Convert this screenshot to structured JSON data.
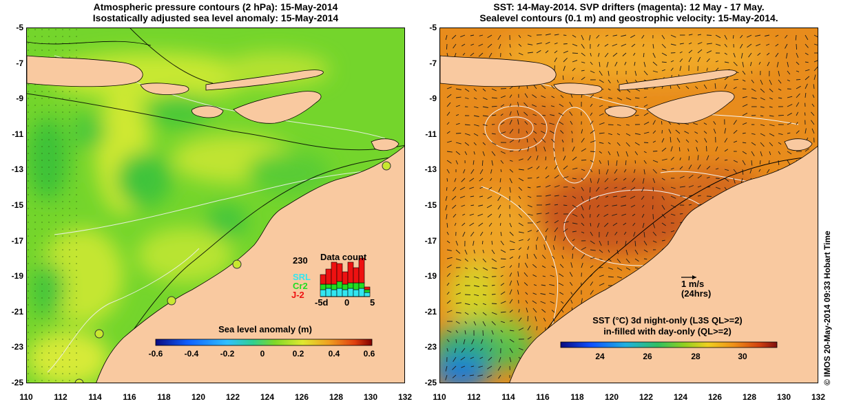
{
  "left_panel": {
    "title_line1": "Atmospheric pressure contours (2 hPa): 15-May-2014",
    "title_line2": "Isostatically adjusted sea level anomaly: 15-May-2014",
    "colorbar": {
      "title": "Sea level anomaly (m)",
      "ticks": [
        "-0.6",
        "-0.4",
        "-0.2",
        "0",
        "0.2",
        "0.4",
        "0.6"
      ]
    },
    "inset": {
      "title": "Data count",
      "max_label": "230",
      "satellites": [
        {
          "name": "SRL",
          "color": "#33e6f0"
        },
        {
          "name": "Cr2",
          "color": "#22dd22"
        },
        {
          "name": "J-2",
          "color": "#ee1111"
        }
      ],
      "x_ticks": [
        "-5d",
        "0",
        "5"
      ]
    }
  },
  "right_panel": {
    "title_line1": "SST: 14-May-2014. SVP drifters (magenta): 12 May - 17 May.",
    "title_line2": "Sealevel contours (0.1 m) and geostrophic velocity: 15-May-2014.",
    "velocity_key": {
      "speed": "1 m/s",
      "duration": "(24hrs)"
    },
    "colorbar": {
      "title_line1": "SST (°C)  3d night-only (L3S QL>=2)",
      "title_line2": "in-filled with day-only (QL>=2)",
      "ticks": [
        "24",
        "26",
        "28",
        "30"
      ]
    }
  },
  "axes": {
    "lat_ticks": [
      "-5",
      "-7",
      "-9",
      "-11",
      "-13",
      "-15",
      "-17",
      "-19",
      "-21",
      "-23",
      "-25"
    ],
    "lon_ticks": [
      "110",
      "112",
      "114",
      "116",
      "118",
      "120",
      "122",
      "124",
      "126",
      "128",
      "130",
      "132"
    ]
  },
  "footer": "© IMOS 20-May-2014 09:33 Hobart Time",
  "colors": {
    "land": "#f9c9a0",
    "ocean_left": "#7ad62a",
    "ocean_right": "#e8901c"
  }
}
